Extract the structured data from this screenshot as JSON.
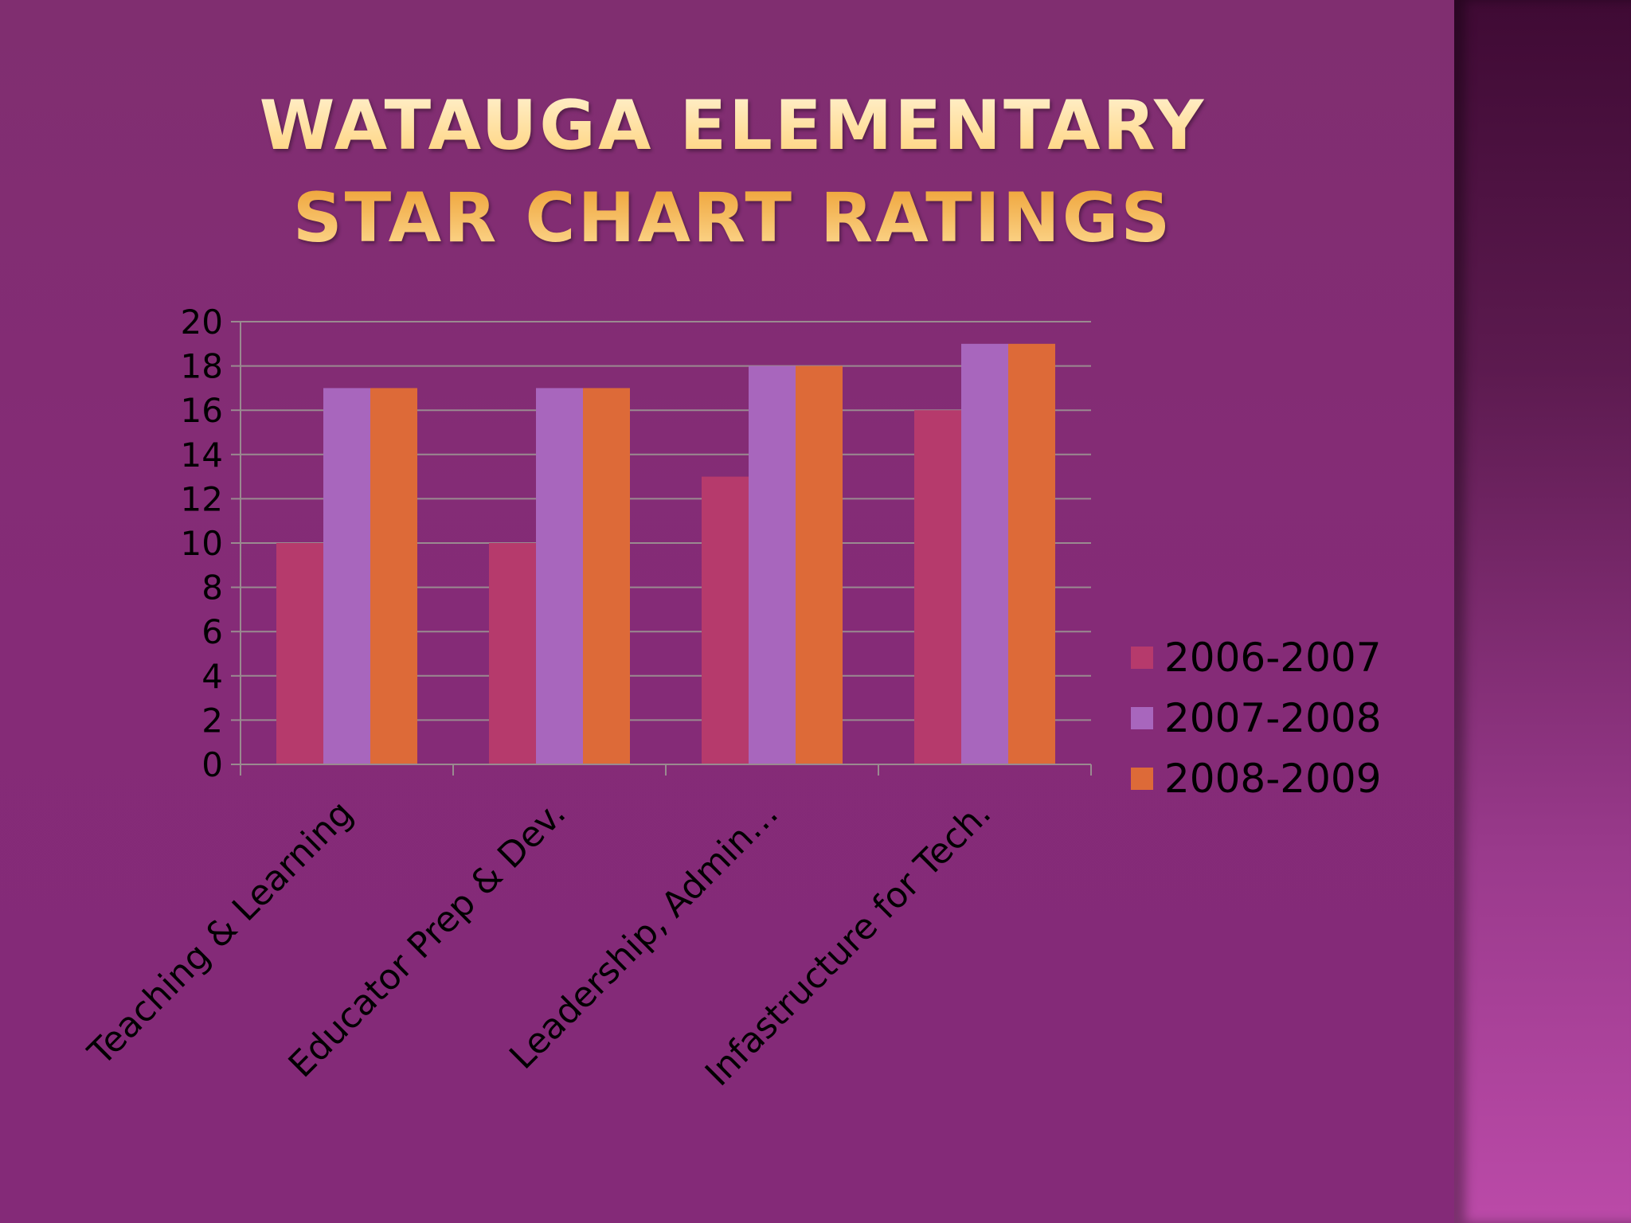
{
  "slide": {
    "title": "WATAUGA ELEMENTARY STAR CHART RATINGS"
  },
  "colors": {
    "background": "#832c74",
    "title_gold": "#ffd27a",
    "series_2006_2007": "#b63a6c",
    "series_2007_2008": "#a866bd",
    "series_2008_2009": "#dd6a38",
    "gridline": "#9a8a90"
  },
  "chart_data": {
    "type": "bar",
    "title": "",
    "xlabel": "",
    "ylabel": "",
    "ylim": [
      0,
      20
    ],
    "yticks": [
      0,
      2,
      4,
      6,
      8,
      10,
      12,
      14,
      16,
      18,
      20
    ],
    "grid": true,
    "legend_position": "right",
    "categories": [
      "Teaching & Learning",
      "Educator Prep & Dev.",
      "Leadership, Admin…",
      "Infastructure for Tech."
    ],
    "series": [
      {
        "name": "2006-2007",
        "color": "#b63a6c",
        "values": [
          10,
          10,
          13,
          16
        ]
      },
      {
        "name": "2007-2008",
        "color": "#a866bd",
        "values": [
          17,
          17,
          18,
          19
        ]
      },
      {
        "name": "2008-2009",
        "color": "#dd6a38",
        "values": [
          17,
          17,
          18,
          19
        ]
      }
    ]
  }
}
